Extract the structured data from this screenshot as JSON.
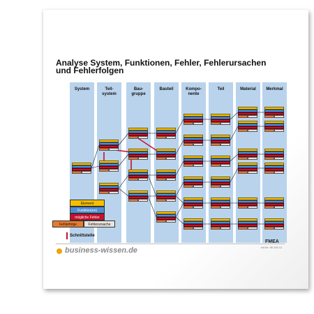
{
  "title": "Analyse System, Funktionen, Fehler, Fehlerursachen und Fehlerfolgen",
  "columns": [
    "System",
    "Teil-\nsystem",
    "Bau-\ngruppe",
    "Bauteil",
    "Kompo-\nnente",
    "Teil",
    "Material",
    "Merkmal"
  ],
  "legend": {
    "element": "Element",
    "funktion": "Funktion(en)",
    "fehler": "mögliche Fehler",
    "fehlerfolge": "Fehlerfolge",
    "fehlerursache": "Fehlerursache"
  },
  "schnittstelle": "Schnittstelle",
  "brand": "business-wissen.de",
  "doc_label": "FMEA",
  "art_nr": "Art.Nr. 98 100 12",
  "colors": {
    "element": "#f6c000",
    "funktion": "#4f8fd6",
    "fehler": "#c8102e",
    "folge": "#e87a2e",
    "ursache": "#e9e4dc",
    "column": "#b9d3ec"
  }
}
